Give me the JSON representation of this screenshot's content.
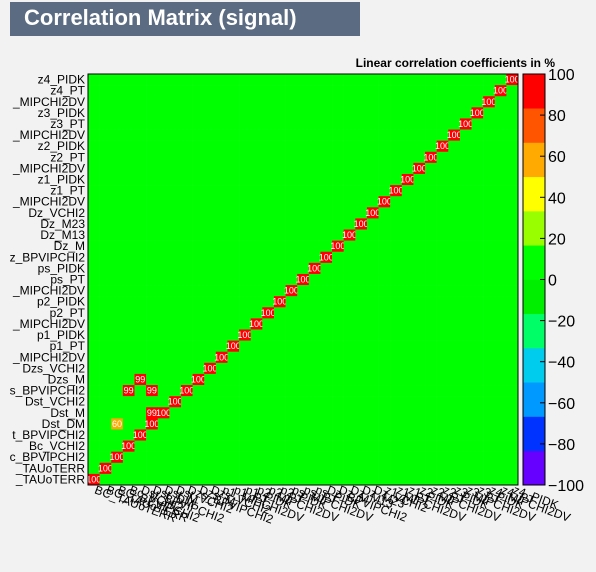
{
  "title": "Correlation Matrix (signal)",
  "chart_data": {
    "type": "heatmap",
    "subtitle": "Linear correlation coefficients in %",
    "z_range": [
      -100,
      100
    ],
    "z_ticks": [
      "100",
      "80",
      "60",
      "40",
      "20",
      "0",
      "−20",
      "−40",
      "−60",
      "−80",
      "−100"
    ],
    "colormap": [
      "#6600ff",
      "#0033ff",
      "#0099ff",
      "#00ccee",
      "#00ff66",
      "#00ee00",
      "#00ff00",
      "#99ff00",
      "#ffff00",
      "#ffaa00",
      "#ff5500",
      "#ff0000"
    ],
    "variables_top_to_bottom": [
      "z4_PIDK",
      "z4_PT",
      "_MIPCHI2DV",
      "z3_PIDK",
      "z3_PT",
      "_MIPCHI2DV",
      "z2_PIDK",
      "z2_PT",
      "_MIPCHI2DV",
      "z1_PIDK",
      "z1_PT",
      "_MIPCHI2DV",
      "Dz_VCHI2",
      "Dz_M23",
      "Dz_M13",
      "Dz_M",
      "z_BPVIPCHI2",
      "ps_PIDK",
      "ps_PT",
      "_MIPCHI2DV",
      "p2_PIDK",
      "p2_PT",
      "_MIPCHI2DV",
      "p1_PIDK",
      "p1_PT",
      "_MIPCHI2DV",
      "Dzs_VCHI2",
      "Dzs_M",
      "s_BPVIPCHI2",
      "Dst_VCHI2",
      "Dst_M",
      "Dst_DM",
      "t_BPVIPCHI2",
      "Bc_VCHI2",
      "c_BPVIPCHI2",
      "_TAUoTERR",
      "_TAUoTERR"
    ],
    "column_labels": [
      "BC_TAUoTERR",
      "BC_TAUoTERR",
      "BC_BPVIPCHI2",
      "Bc_VCHI2",
      "Dst_BPVIPCHI2",
      "Dst_DM",
      "Dst_M",
      "Dst_VCHI2",
      "Dzs_BPVIPCHI2",
      "Dzs_M",
      "Dzs_VCHI2",
      "p1_MIPCHI2DV",
      "p1_PT",
      "p1_PIDK",
      "p2_MIPCHI2DV",
      "p2_PT",
      "p2_PIDK",
      "ps_MIPCHI2DV",
      "ps_PT",
      "ps_PIDK",
      "Dz_BPVIPCHI2",
      "Dz_M",
      "Dz_M13",
      "Dz_M23",
      "Dz_VCHI2",
      "z1_MIPCHI2DV",
      "z1_PT",
      "z1_PIDK",
      "z2_MIPCHI2DV",
      "z2_PT",
      "z2_PIDK",
      "z3_MIPCHI2DV",
      "z3_PT",
      "z3_PIDK",
      "z4_MIPCHI2DV",
      "z4_PT",
      "z4_PIDK"
    ],
    "highlighted_cells": [
      {
        "row": 28,
        "col": 3,
        "value": 99
      },
      {
        "row": 28,
        "col": 5,
        "value": 99
      },
      {
        "row": 27,
        "col": 4,
        "value": 99
      },
      {
        "row": 30,
        "col": 5,
        "value": 99
      },
      {
        "row": 30,
        "col": 6,
        "value": 100
      },
      {
        "row": 33,
        "col": 3,
        "value": 100
      },
      {
        "row": 34,
        "col": 2,
        "value": 100
      },
      {
        "row": 36,
        "col": 0,
        "value": 100
      },
      {
        "row": 31,
        "col": 2,
        "value": 60
      },
      {
        "row": 32,
        "col": 4,
        "value": 99
      },
      {
        "row": 28,
        "col": 8,
        "value": 100
      }
    ],
    "grid": true
  }
}
